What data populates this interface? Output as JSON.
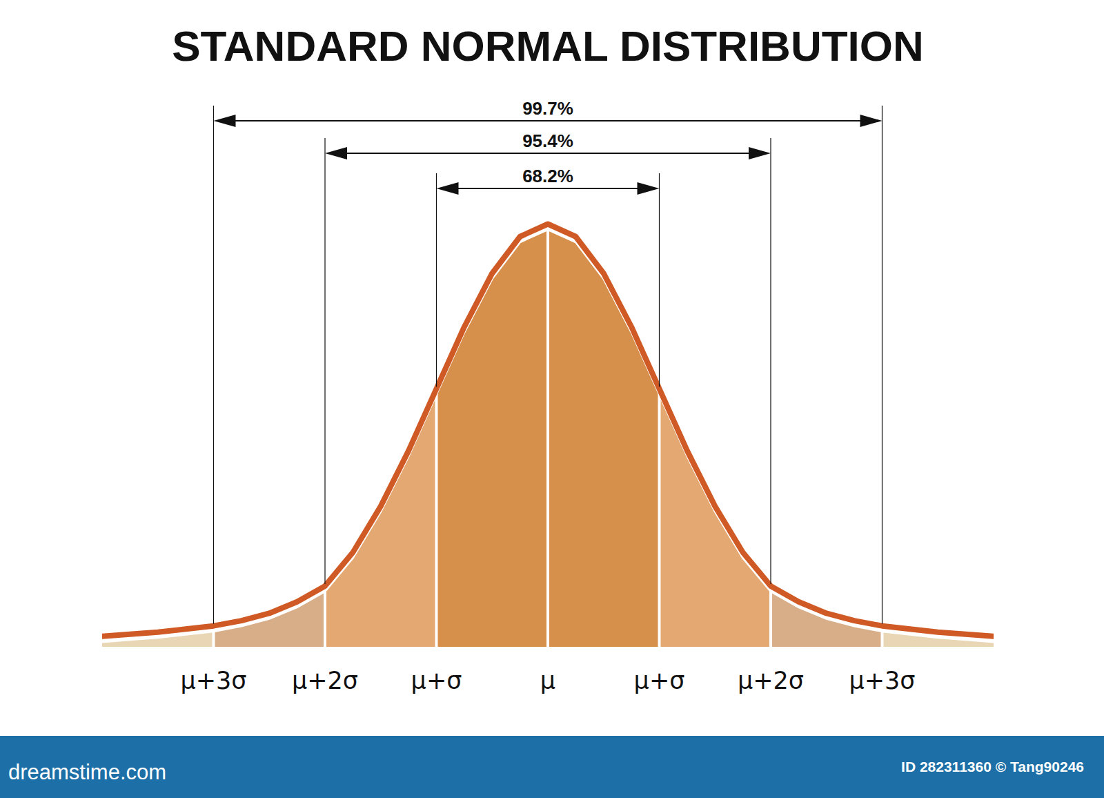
{
  "chart_data": {
    "type": "area",
    "title": "STANDARD NORMAL DISTRIBUTION",
    "x": [
      -4,
      -3.75,
      -3.5,
      -3.25,
      -3,
      -2.75,
      -2.5,
      -2.25,
      -2,
      -1.75,
      -1.5,
      -1.25,
      -1,
      -0.75,
      -0.5,
      -0.25,
      0,
      0.25,
      0.5,
      0.75,
      1,
      1.25,
      1.5,
      1.75,
      2,
      2.25,
      2.5,
      2.75,
      3,
      3.25,
      3.5,
      3.75,
      4
    ],
    "values": [
      0.006,
      0.008,
      0.01,
      0.013,
      0.016,
      0.021,
      0.028,
      0.039,
      0.054,
      0.086,
      0.13,
      0.183,
      0.242,
      0.301,
      0.352,
      0.387,
      0.399,
      0.387,
      0.352,
      0.301,
      0.242,
      0.183,
      0.13,
      0.086,
      0.054,
      0.039,
      0.028,
      0.021,
      0.016,
      0.013,
      0.01,
      0.008,
      0.006
    ],
    "color": "#cf5a25",
    "xlim": [
      -4,
      4
    ],
    "ylim": [
      0,
      0.4
    ],
    "xticks": [
      {
        "value": -3,
        "label": "μ+3σ"
      },
      {
        "value": -2,
        "label": "μ+2σ"
      },
      {
        "value": -1,
        "label": "μ+σ"
      },
      {
        "value": 0,
        "label": "μ"
      },
      {
        "value": 1,
        "label": "μ+σ"
      },
      {
        "value": 2,
        "label": "μ+2σ"
      },
      {
        "value": 3,
        "label": "μ+3σ"
      }
    ],
    "tick_labels": "x",
    "annotations": [
      {
        "value": 99.7,
        "label": "99.7%",
        "range": [
          -3,
          3
        ]
      },
      {
        "value": 95.4,
        "label": "95.4%",
        "range": [
          -2,
          2
        ]
      },
      {
        "value": 68.2,
        "label": "68.2%",
        "range": [
          -1,
          1
        ]
      }
    ]
  },
  "footer": {
    "site": "dreamstime.com",
    "credit": "ID 282311360 © Tang90246"
  }
}
